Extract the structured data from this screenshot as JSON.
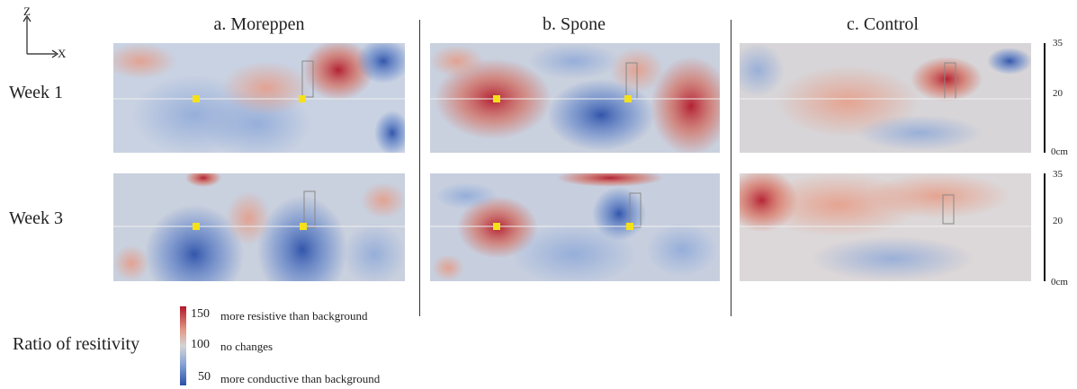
{
  "axes": {
    "z_label": "Z",
    "x_label": "X"
  },
  "columns": [
    {
      "title": "a. Moreppen"
    },
    {
      "title": "b. Spone"
    },
    {
      "title": "c. Control"
    }
  ],
  "rows": [
    {
      "label": "Week 1"
    },
    {
      "label": "Week 3"
    }
  ],
  "depth_scale": {
    "week1": {
      "top": "35",
      "mid": "20",
      "bottom": "0cm"
    },
    "week3": {
      "top": "35",
      "mid": "20",
      "bottom": "0cm"
    }
  },
  "colorbar": {
    "title": "Ratio of resitivity",
    "high_value": "150",
    "high_text": "more resistive than background",
    "mid_value": "100",
    "mid_text": "no changes",
    "low_value": "50",
    "low_text": "more conductive than background",
    "colors": {
      "high": "#b2182b",
      "mid": "#d4d4d4",
      "low": "#2b4fa8"
    }
  }
}
